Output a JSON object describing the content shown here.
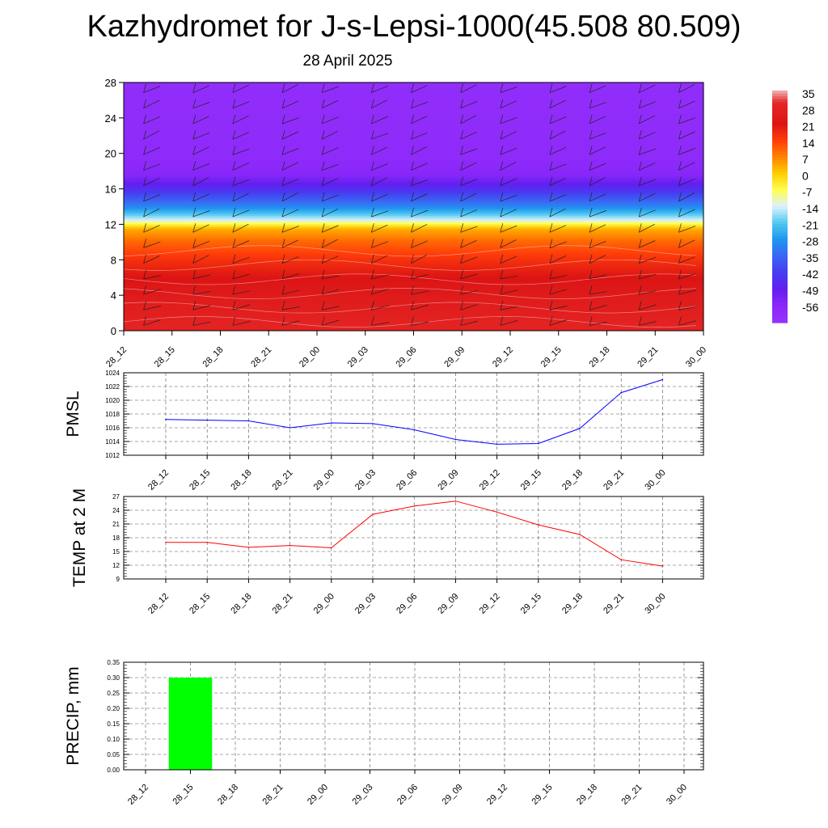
{
  "header": {
    "title": "Kazhydromet for J-s-Lepsi-1000(45.508 80.509)",
    "subtitle": "28 April 2025"
  },
  "chart_data": [
    {
      "type": "heatmap",
      "ylim": [
        0,
        28
      ],
      "yticks": [
        "0",
        "4",
        "8",
        "12",
        "16",
        "20",
        "24",
        "28"
      ],
      "categories": [
        "28_12",
        "28_15",
        "28_18",
        "28_21",
        "29_00",
        "29_03",
        "29_06",
        "29_09",
        "29_12",
        "29_15",
        "29_18",
        "29_21",
        "30_00"
      ],
      "colorbar": {
        "labels": [
          "35",
          "28",
          "21",
          "14",
          "7",
          "0",
          "-7",
          "-14",
          "-21",
          "-28",
          "-35",
          "-42",
          "-49",
          "-56"
        ]
      },
      "temperature_profile": {
        "levels": [
          0,
          2,
          4,
          6,
          8,
          10,
          11.5,
          12.5,
          14,
          16,
          17.5,
          18.5,
          20,
          28
        ],
        "values": [
          28,
          26,
          24,
          21,
          16,
          10,
          3,
          -14,
          -30,
          -45,
          -55,
          -56,
          -58,
          -60
        ]
      }
    },
    {
      "type": "line",
      "ylabel": "PMSL",
      "ylim": [
        1012,
        1024
      ],
      "yticks": [
        "1012",
        "1014",
        "1016",
        "1018",
        "1020",
        "1022",
        "1024"
      ],
      "categories": [
        "28_12",
        "28_15",
        "28_18",
        "28_21",
        "29_00",
        "29_03",
        "29_06",
        "29_09",
        "29_12",
        "29_15",
        "29_18",
        "29_21",
        "30_00"
      ],
      "values": [
        1017.2,
        1017.1,
        1017.0,
        1016.0,
        1016.7,
        1016.6,
        1015.7,
        1014.3,
        1013.6,
        1013.7,
        1015.9,
        1021.1,
        1023.0
      ],
      "color": "#0000ff"
    },
    {
      "type": "line",
      "ylabel": "TEMP at 2 M",
      "ylim": [
        9,
        27
      ],
      "yticks": [
        "9",
        "12",
        "15",
        "18",
        "21",
        "24",
        "27"
      ],
      "categories": [
        "28_12",
        "28_15",
        "28_18",
        "28_21",
        "29_00",
        "29_03",
        "29_06",
        "29_09",
        "29_12",
        "29_15",
        "29_18",
        "29_21",
        "30_00"
      ],
      "values": [
        17.0,
        17.0,
        15.9,
        16.3,
        15.8,
        23.1,
        24.9,
        26.0,
        23.6,
        20.8,
        18.7,
        13.2,
        11.8
      ],
      "color": "#ff0000"
    },
    {
      "type": "bar",
      "ylabel": "PRECIP, mm",
      "ylim": [
        0,
        0.35
      ],
      "yticks": [
        "0.00",
        "0.05",
        "0.10",
        "0.15",
        "0.20",
        "0.25",
        "0.30",
        "0.35"
      ],
      "categories": [
        "28_12",
        "28_15",
        "28_18",
        "28_21",
        "29_00",
        "29_03",
        "29_06",
        "29_09",
        "29_12",
        "29_15",
        "29_18",
        "29_21",
        "30_00"
      ],
      "values": [
        0,
        0.3,
        0,
        0,
        0,
        0,
        0,
        0,
        0,
        0,
        0,
        0,
        0
      ],
      "color": "#00ff00"
    }
  ]
}
